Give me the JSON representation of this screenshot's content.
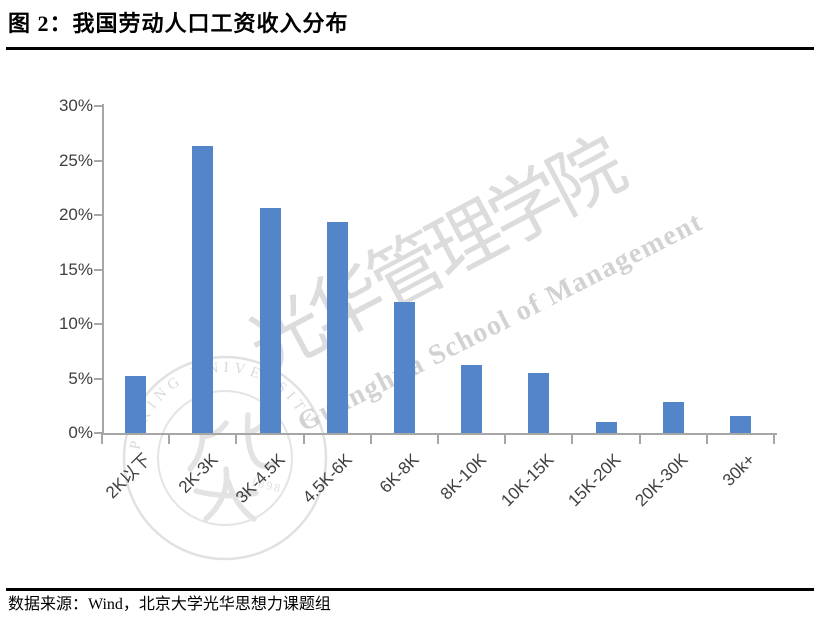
{
  "figure": {
    "title": "图 2：我国劳动人口工资收入分布",
    "source": "数据来源：Wind，北京大学光华思想力课题组"
  },
  "watermark": {
    "calligraphy": "光华管理学院",
    "school_en": "Guanghua School of Management",
    "seal_ring_text": "PEKING UNIVERSITY",
    "seal_year": "1898"
  },
  "chart_data": {
    "type": "bar",
    "title": "图 2：我国劳动人口工资收入分布",
    "categories": [
      "2K以下",
      "2K-3K",
      "3K-4.5K",
      "4.5K-6K",
      "6K-8K",
      "8K-10K",
      "10K-15K",
      "15K-20K",
      "20K-30K",
      "30k+"
    ],
    "values": [
      5.2,
      26.3,
      20.6,
      19.4,
      12,
      6.2,
      5.5,
      1,
      2.8,
      1.6
    ],
    "unit": "%",
    "xlabel": "",
    "ylabel": "",
    "ylim": [
      0,
      30
    ],
    "ytick_step": 5,
    "ytick_labels": [
      "0%",
      "5%",
      "10%",
      "15%",
      "20%",
      "25%",
      "30%"
    ],
    "grid": false,
    "legend_position": "none",
    "bar_color": "#5585c9",
    "axis_color": "#a6a6a6",
    "tick_label_color": "#3f3f3f"
  }
}
